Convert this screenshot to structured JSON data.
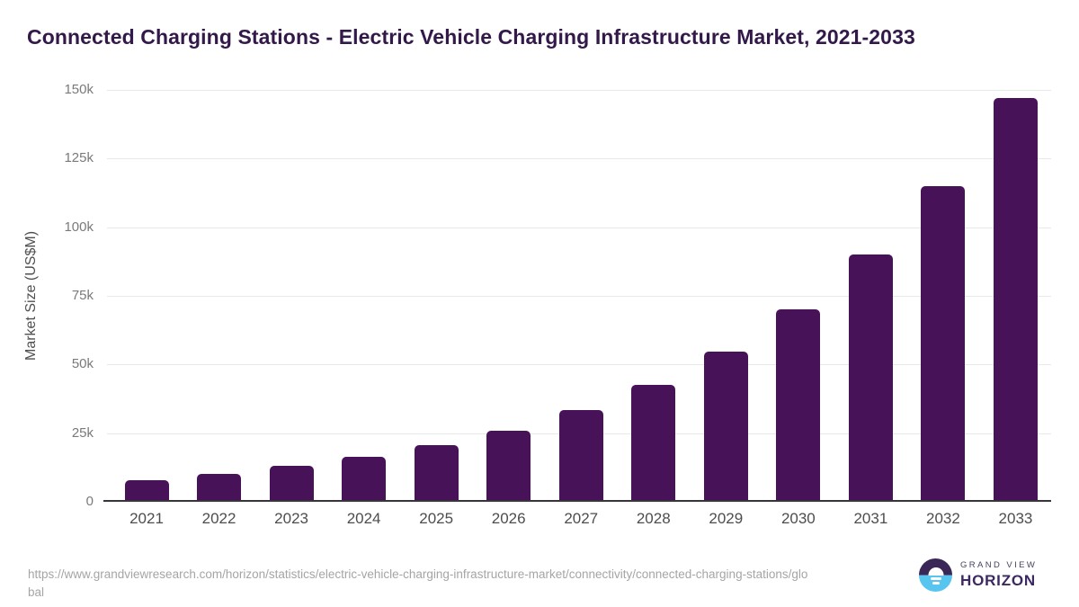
{
  "header": {
    "title": "Connected Charging Stations - Electric Vehicle Charging Infrastructure Market, 2021-2033"
  },
  "chart_data": {
    "type": "bar",
    "title": "Connected Charging Stations - Electric Vehicle Charging Infrastructure Market, 2021-2033",
    "categories": [
      "2021",
      "2022",
      "2023",
      "2024",
      "2025",
      "2026",
      "2027",
      "2028",
      "2029",
      "2030",
      "2031",
      "2032",
      "2033"
    ],
    "values": [
      7200,
      9400,
      12400,
      15900,
      20000,
      25200,
      32800,
      42000,
      54200,
      69500,
      89300,
      114400,
      146400
    ],
    "xlabel": "",
    "ylabel": "Market Size (US$M)",
    "ylim": [
      0,
      150000
    ],
    "yticks": [
      0,
      25000,
      50000,
      75000,
      100000,
      125000,
      150000
    ],
    "ytick_labels": [
      "0",
      "25k",
      "50k",
      "75k",
      "100k",
      "125k",
      "150k"
    ],
    "grid": true,
    "legend": false,
    "bar_color": "#481259"
  },
  "footer": {
    "source_url": "https://www.grandviewresearch.com/horizon/statistics/electric-vehicle-charging-infrastructure-market/connectivity/connected-charging-stations/global",
    "brand": {
      "top": "GRAND VIEW",
      "bottom": "HORIZON"
    }
  },
  "colors": {
    "bar": "#481259",
    "title_text": "#33194a",
    "axis_line": "#37343b",
    "gridline": "#e8e8e8",
    "x_tick_text": "#4d4d4d",
    "y_tick_text": "#7a7a7a",
    "source_text": "#a5a5a5",
    "logo_blue": "#58c4f0",
    "logo_purple": "#3a2657"
  }
}
